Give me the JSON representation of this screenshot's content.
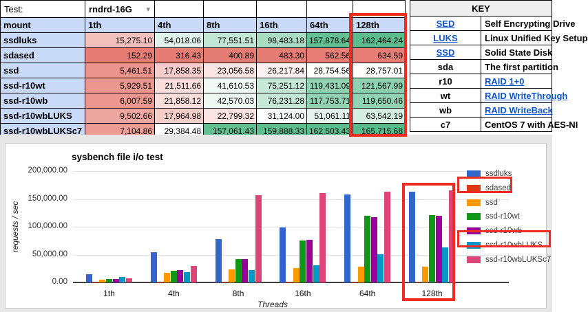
{
  "test_selector": {
    "label": "Test:",
    "value": "rndrd-16G"
  },
  "table": {
    "columns": [
      "mount",
      "1th",
      "4th",
      "8th",
      "16th",
      "64th",
      "128th"
    ],
    "rows": [
      {
        "mount": "ssdluks",
        "values": [
          "15,275.10",
          "54,018.06",
          "77,551.51",
          "98,483.18",
          "157,878.64",
          "162,464.24"
        ]
      },
      {
        "mount": "sdased",
        "values": [
          "152.29",
          "316.43",
          "400.89",
          "483.30",
          "562.56",
          "634.59"
        ]
      },
      {
        "mount": "ssd",
        "values": [
          "5,461.51",
          "17,858.35",
          "23,056.58",
          "26,217.84",
          "28,754.56",
          "28,757.01"
        ]
      },
      {
        "mount": "ssd-r10wt",
        "values": [
          "5,929.51",
          "21,511.66",
          "41,610.53",
          "75,251.12",
          "119,431.09",
          "121,567.99"
        ]
      },
      {
        "mount": "ssd-r10wb",
        "values": [
          "6,007.59",
          "21,858.12",
          "42,570.03",
          "76,231.28",
          "117,753.71",
          "119,650.46"
        ]
      },
      {
        "mount": "ssd-r10wbLUKS",
        "values": [
          "9,502.66",
          "17,964.98",
          "22,799.32",
          "31,124.00",
          "51,061.11",
          "63,542.19"
        ]
      },
      {
        "mount": "ssd-r10wbLUKSc7",
        "values": [
          "7,104.86",
          "29,384.48",
          "157,061.43",
          "159,888.33",
          "162,503.43",
          "165,715.68"
        ]
      }
    ],
    "header_bg": "#c9daf8",
    "color_scale": {
      "min": 152.29,
      "mid": 29070.75,
      "max": 165715.68,
      "min_color": "#e67c73",
      "mid_color": "#ffffff",
      "max_color": "#57bb8a"
    }
  },
  "key": {
    "title": "KEY",
    "link_color": "#1155cc",
    "rows": [
      {
        "abbr": "SED",
        "desc": "Self Encrypting Drive",
        "abbr_link": true,
        "desc_link": false
      },
      {
        "abbr": "LUKS",
        "desc": "Linux Unified Key Setup",
        "abbr_link": true,
        "desc_link": false
      },
      {
        "abbr": "SSD",
        "desc": "Solid State Disk",
        "abbr_link": true,
        "desc_link": false
      },
      {
        "abbr": "sda",
        "desc": "The first partition",
        "abbr_link": false,
        "desc_link": false
      },
      {
        "abbr": "r10",
        "desc": "RAID 1+0",
        "abbr_link": false,
        "desc_link": true
      },
      {
        "abbr": "wt",
        "desc": "RAID WriteThrough",
        "abbr_link": false,
        "desc_link": true
      },
      {
        "abbr": "wb",
        "desc": "RAID WriteBack",
        "abbr_link": false,
        "desc_link": true
      },
      {
        "abbr": "c7",
        "desc": "CentOS 7 with AES-NI",
        "abbr_link": false,
        "desc_link": false
      }
    ]
  },
  "chart_data": {
    "type": "bar",
    "title": "sysbench file i/o test",
    "xlabel": "Threads",
    "ylabel": "requests / sec",
    "categories": [
      "1th",
      "4th",
      "8th",
      "16th",
      "64th",
      "128th"
    ],
    "series": [
      {
        "name": "ssdluks",
        "color": "#3366cc",
        "values": [
          15275.1,
          54018.06,
          77551.51,
          98483.18,
          157878.64,
          162464.24
        ]
      },
      {
        "name": "sdased",
        "color": "#dc3912",
        "values": [
          152.29,
          316.43,
          400.89,
          483.3,
          562.56,
          634.59
        ]
      },
      {
        "name": "ssd",
        "color": "#ff9900",
        "values": [
          5461.51,
          17858.35,
          23056.58,
          26217.84,
          28754.56,
          28757.01
        ]
      },
      {
        "name": "ssd-r10wt",
        "color": "#109618",
        "values": [
          5929.51,
          21511.66,
          41610.53,
          75251.12,
          119431.09,
          121567.99
        ]
      },
      {
        "name": "ssd-r10wb",
        "color": "#990099",
        "values": [
          6007.59,
          21858.12,
          42570.03,
          76231.28,
          117753.71,
          119650.46
        ]
      },
      {
        "name": "ssd-r10wbLUKS",
        "color": "#0099c6",
        "values": [
          9502.66,
          17964.98,
          22799.32,
          31124.0,
          51061.11,
          63542.19
        ]
      },
      {
        "name": "ssd-r10wbLUKSc7",
        "color": "#dd4477",
        "values": [
          7104.86,
          29384.48,
          157061.43,
          159888.33,
          162503.43,
          165715.68
        ]
      }
    ],
    "ylim": [
      0,
      200000
    ],
    "yticks": [
      "0.00",
      "50,000.00",
      "100,000.00",
      "150,000.00",
      "200,000.00"
    ],
    "legend_position": "right",
    "grid": true
  },
  "annotations": {
    "highlight_color": "#ee2c24"
  }
}
